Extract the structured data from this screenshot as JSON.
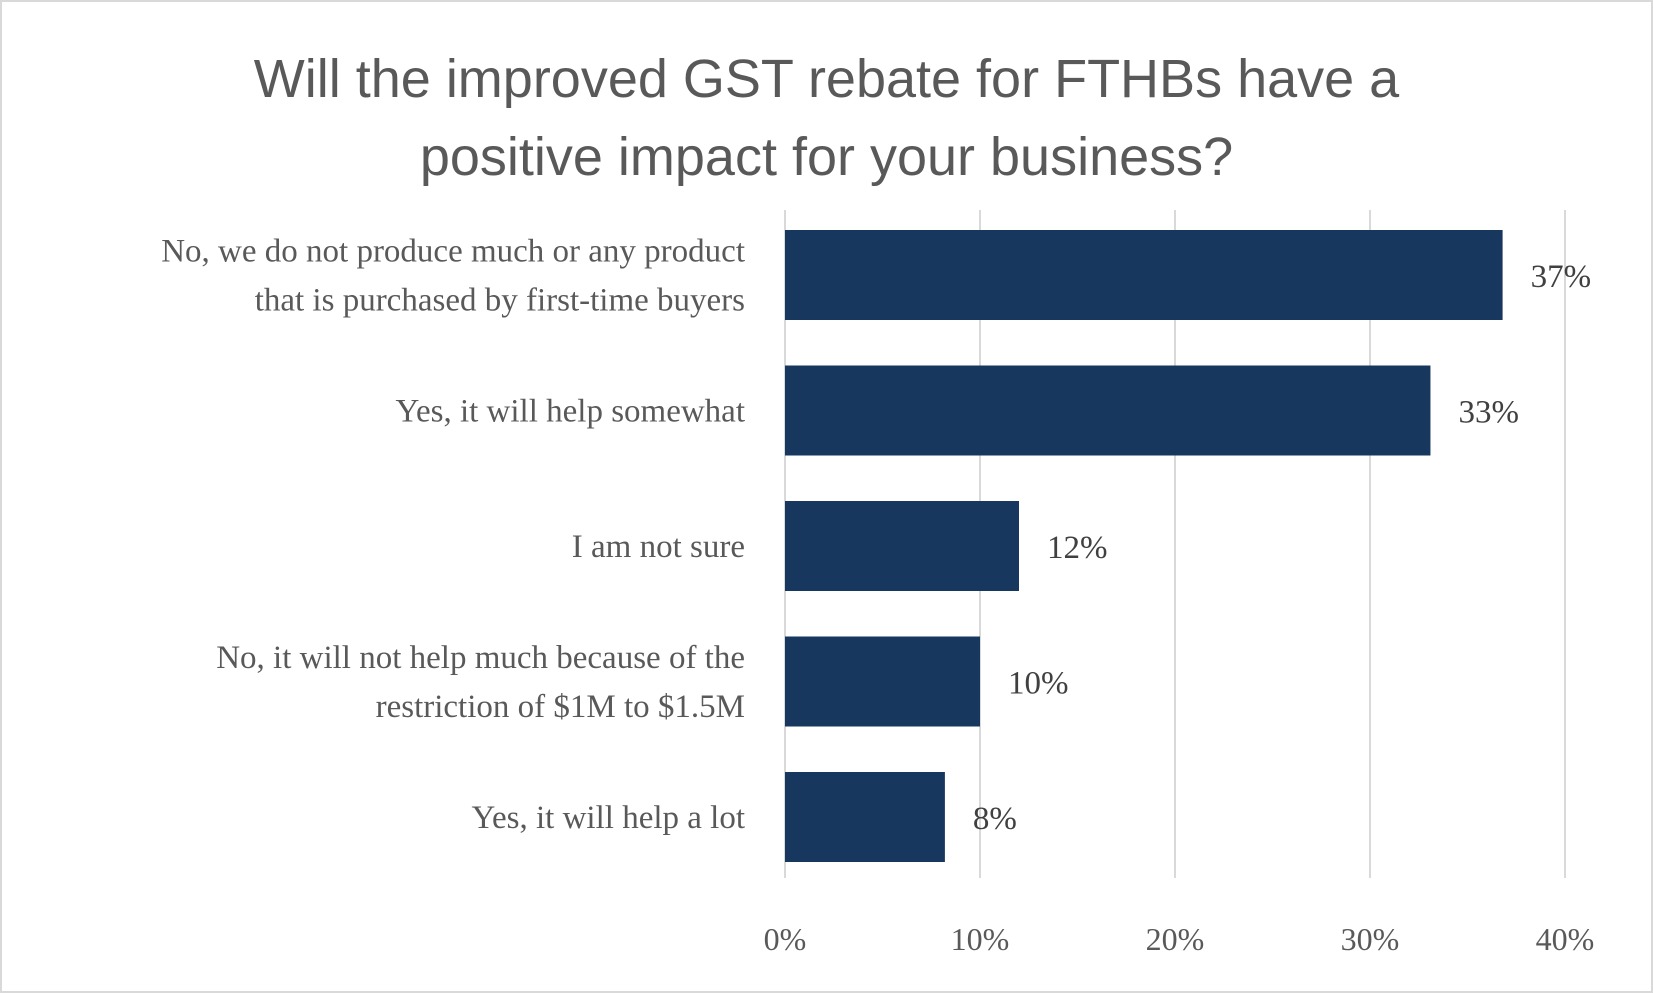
{
  "chart_data": {
    "type": "bar",
    "orientation": "horizontal",
    "title_lines": [
      "Will the improved GST rebate for FTHBs have a",
      "positive impact for your business?"
    ],
    "categories": [
      [
        "No, we do not produce much or any product",
        "that is purchased by first-time buyers"
      ],
      [
        "Yes, it will help somewhat"
      ],
      [
        "I am not sure"
      ],
      [
        "No, it will not help much because of the",
        "restriction of $1M to $1.5M"
      ],
      [
        "Yes, it will help a lot"
      ]
    ],
    "values": [
      36.8,
      33.1,
      12.0,
      10.0,
      8.2
    ],
    "data_labels": [
      "37%",
      "33%",
      "12%",
      "10%",
      "8%"
    ],
    "xticks": [
      "0%",
      "10%",
      "20%",
      "30%",
      "40%"
    ],
    "xlim": [
      0,
      40
    ],
    "grid": true,
    "legend": "none",
    "bar_color": "#17375e",
    "grid_color": "#d9d9d9"
  }
}
